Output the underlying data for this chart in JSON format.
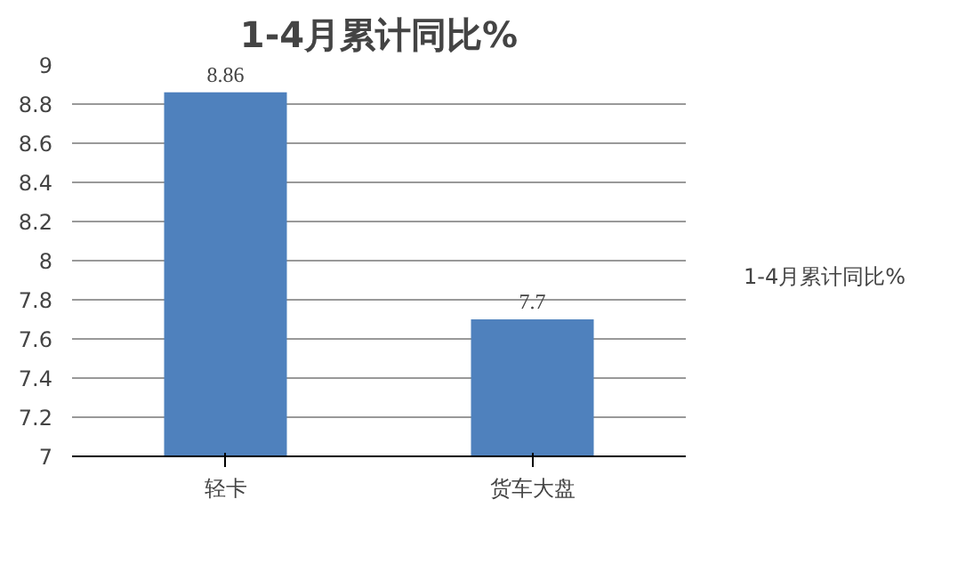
{
  "chart_data": {
    "type": "bar",
    "title": "1-4月累计同比%",
    "categories": [
      "轻卡",
      "货车大盘"
    ],
    "series": [
      {
        "name": "1-4月累计同比%",
        "color": "#4f81bd",
        "values": [
          8.86,
          7.7
        ]
      }
    ],
    "ylim": [
      7,
      9
    ],
    "yticks": [
      7,
      7.2,
      7.4,
      7.6,
      7.8,
      8,
      8.2,
      8.4,
      8.6,
      8.8,
      9
    ],
    "grid": "y",
    "legend": "right",
    "data_labels": true
  }
}
